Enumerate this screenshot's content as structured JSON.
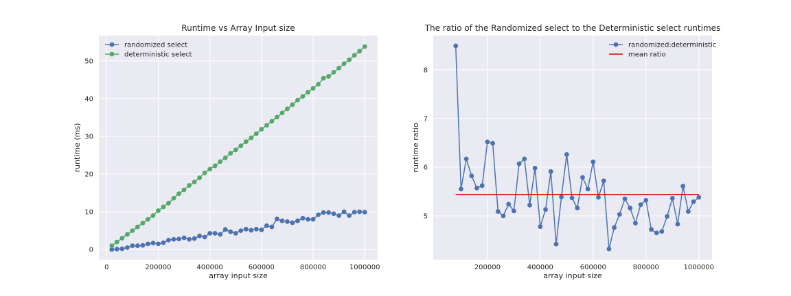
{
  "chart_data": [
    {
      "type": "line",
      "title": "Runtime vs Array Input size",
      "xlabel": "array input size",
      "ylabel": "runtime (ms)",
      "xlim": [
        -30000,
        1050000
      ],
      "ylim": [
        -2.7,
        56.7
      ],
      "xticks": [
        0,
        200000,
        400000,
        600000,
        800000,
        1000000
      ],
      "xtick_labels": [
        "0",
        "200000",
        "400000",
        "600000",
        "800000",
        "1000000"
      ],
      "yticks": [
        0,
        10,
        20,
        30,
        40,
        50
      ],
      "ytick_labels": [
        "0",
        "10",
        "20",
        "30",
        "40",
        "50"
      ],
      "grid": true,
      "legend_position": "top-left",
      "x": [
        20000,
        40000,
        60000,
        80000,
        100000,
        120000,
        140000,
        160000,
        180000,
        200000,
        220000,
        240000,
        260000,
        280000,
        300000,
        320000,
        340000,
        360000,
        380000,
        400000,
        420000,
        440000,
        460000,
        480000,
        500000,
        520000,
        540000,
        560000,
        580000,
        600000,
        620000,
        640000,
        660000,
        680000,
        700000,
        720000,
        740000,
        760000,
        780000,
        800000,
        820000,
        840000,
        860000,
        880000,
        900000,
        920000,
        940000,
        960000,
        980000,
        1000000
      ],
      "series": [
        {
          "name": "randomized select",
          "color": "#4c72b0",
          "values": [
            0.0,
            0.1,
            0.2,
            0.5,
            1.0,
            1.0,
            1.1,
            1.5,
            1.7,
            1.5,
            1.8,
            2.5,
            2.7,
            2.8,
            3.1,
            2.7,
            2.9,
            3.6,
            3.3,
            4.3,
            4.3,
            4.0,
            5.3,
            4.7,
            4.3,
            5.0,
            5.4,
            5.1,
            5.4,
            5.2,
            6.3,
            6.0,
            8.1,
            7.6,
            7.4,
            7.1,
            7.6,
            8.3,
            8.0,
            8.0,
            9.2,
            9.8,
            9.8,
            9.5,
            9.0,
            10.0,
            9.0,
            9.9,
            10.0,
            9.9
          ]
        },
        {
          "name": "deterministic select",
          "color": "#55a868",
          "values": [
            1.0,
            2.0,
            3.0,
            4.0,
            5.0,
            6.0,
            7.0,
            8.0,
            9.0,
            10.3,
            11.3,
            12.3,
            13.6,
            14.8,
            15.8,
            17.0,
            17.9,
            19.0,
            20.3,
            21.3,
            22.2,
            23.3,
            24.3,
            25.5,
            26.4,
            27.5,
            28.6,
            29.6,
            30.7,
            31.9,
            32.9,
            34.0,
            35.1,
            36.2,
            37.3,
            38.4,
            39.6,
            40.6,
            41.7,
            42.7,
            43.8,
            45.4,
            45.9,
            47.0,
            48.1,
            49.3,
            50.3,
            51.5,
            52.6,
            53.8
          ]
        }
      ]
    },
    {
      "type": "line",
      "title": "The ratio of the Randomized select to the Deterministic select runtimes",
      "xlabel": "array input size",
      "ylabel": "runtime ratio",
      "xlim": [
        -5000,
        1050000
      ],
      "ylim": [
        4.1,
        8.7
      ],
      "xticks": [
        200000,
        400000,
        600000,
        800000,
        1000000
      ],
      "xtick_labels": [
        "200000",
        "400000",
        "600000",
        "800000",
        "1000000"
      ],
      "yticks": [
        5,
        6,
        7,
        8
      ],
      "ytick_labels": [
        "5",
        "6",
        "7",
        "8"
      ],
      "grid": true,
      "legend_position": "top-right",
      "x": [
        80000,
        100000,
        120000,
        140000,
        160000,
        180000,
        200000,
        220000,
        240000,
        260000,
        280000,
        300000,
        320000,
        340000,
        360000,
        380000,
        400000,
        420000,
        440000,
        460000,
        480000,
        500000,
        520000,
        540000,
        560000,
        580000,
        600000,
        620000,
        640000,
        660000,
        680000,
        700000,
        720000,
        740000,
        760000,
        780000,
        800000,
        820000,
        840000,
        860000,
        880000,
        900000,
        920000,
        940000,
        960000,
        980000,
        1000000
      ],
      "series": [
        {
          "name": "randomized:deterministic",
          "color": "#4c72b0",
          "values": [
            8.49,
            5.55,
            6.17,
            5.82,
            5.57,
            5.62,
            6.52,
            6.49,
            5.09,
            5.0,
            5.24,
            5.1,
            6.07,
            6.17,
            5.22,
            5.98,
            4.78,
            5.13,
            5.91,
            4.42,
            5.39,
            6.26,
            5.37,
            5.16,
            5.79,
            5.55,
            6.11,
            5.38,
            5.72,
            4.32,
            4.76,
            5.03,
            5.35,
            5.16,
            4.85,
            5.23,
            5.32,
            4.72,
            4.65,
            4.68,
            4.99,
            5.36,
            4.83,
            5.61,
            5.09,
            5.29,
            5.38
          ]
        },
        {
          "name": "mean ratio",
          "color": "#e00000",
          "line_only": true,
          "x": [
            80000,
            1000000
          ],
          "values": [
            5.44,
            5.44
          ]
        }
      ]
    }
  ]
}
